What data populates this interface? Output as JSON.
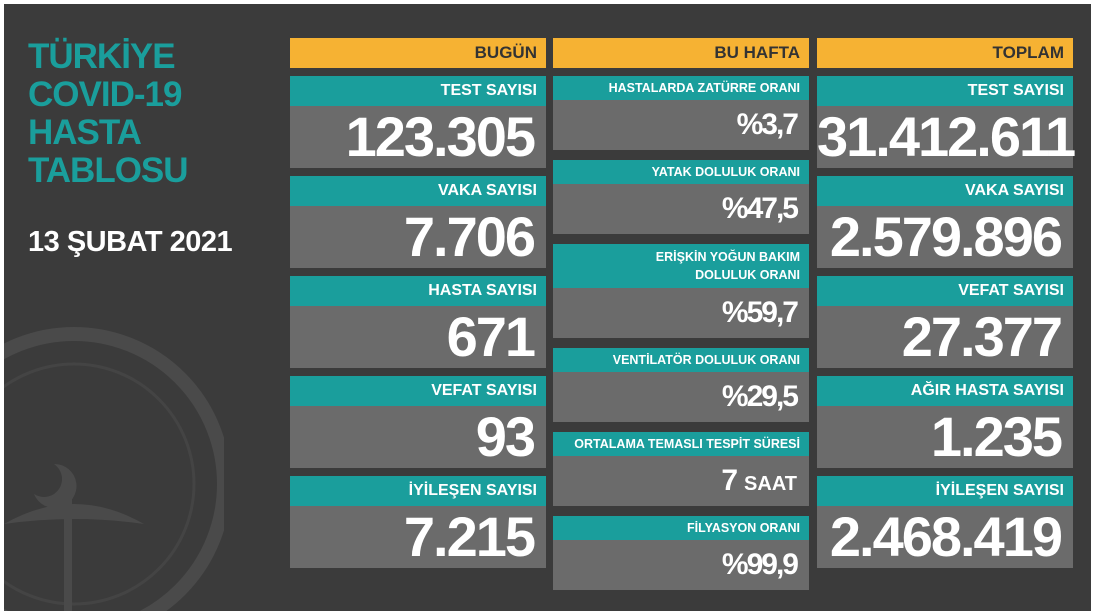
{
  "header": {
    "title_lines": [
      "TÜRKİYE",
      "COVID-19",
      "HASTA",
      "TABLOSU"
    ],
    "date": "13 ŞUBAT 2021"
  },
  "columns": [
    {
      "header": "BUGÜN",
      "items": [
        {
          "label": "TEST SAYISI",
          "value": "123.305"
        },
        {
          "label": "VAKA SAYISI",
          "value": "7.706"
        },
        {
          "label": "HASTA SAYISI",
          "value": "671"
        },
        {
          "label": "VEFAT SAYISI",
          "value": "93"
        },
        {
          "label": "İYİLEŞEN SAYISI",
          "value": "7.215"
        }
      ]
    },
    {
      "header": "BU HAFTA",
      "items": [
        {
          "label": "HASTALARDA ZATÜRRE ORANI",
          "value": "%3,7"
        },
        {
          "label": "YATAK DOLULUK ORANI",
          "value": "%47,5"
        },
        {
          "label": "ERİŞKİN YOĞUN BAKIM DOLULUK ORANI",
          "value": "%59,7"
        },
        {
          "label": "VENTİLATÖR DOLULUK ORANI",
          "value": "%29,5"
        },
        {
          "label": "ORTALAMA TEMASLI TESPİT SÜRESİ",
          "value": "7",
          "unit": "SAAT"
        },
        {
          "label": "FİLYASYON ORANI",
          "value": "%99,9"
        }
      ]
    },
    {
      "header": "TOPLAM",
      "items": [
        {
          "label": "TEST SAYISI",
          "value": "31.412.611"
        },
        {
          "label": "VAKA SAYISI",
          "value": "2.579.896"
        },
        {
          "label": "VEFAT SAYISI",
          "value": "27.377"
        },
        {
          "label": "AĞIR HASTA SAYISI",
          "value": "1.235"
        },
        {
          "label": "İYİLEŞEN SAYISI",
          "value": "2.468.419"
        }
      ]
    }
  ]
}
